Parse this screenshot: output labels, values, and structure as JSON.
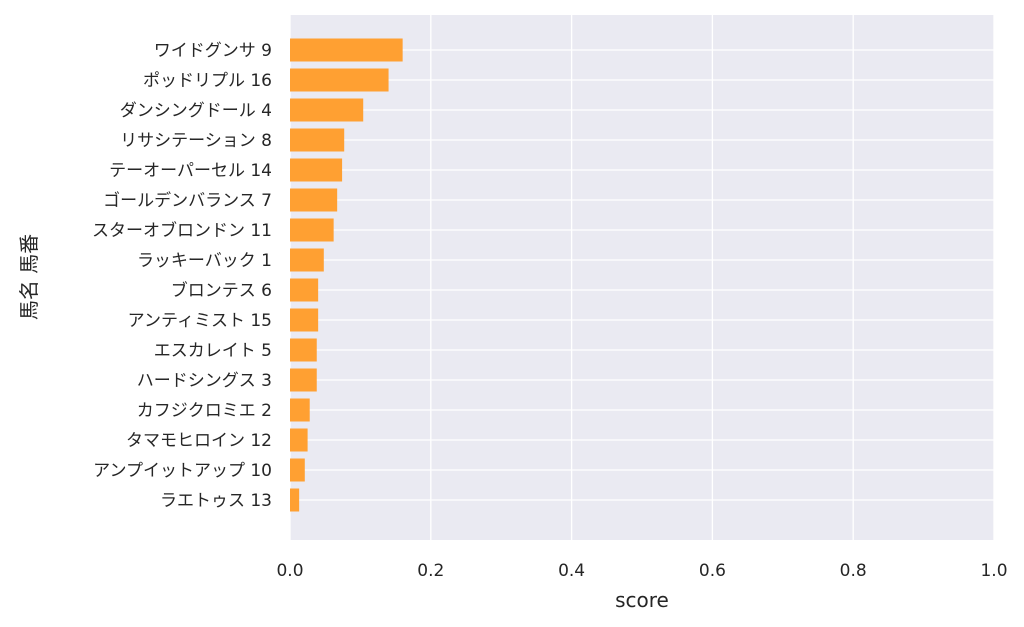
{
  "chart_data": {
    "type": "bar",
    "orientation": "horizontal",
    "title": "",
    "xlabel": "score",
    "ylabel": "馬名 馬番",
    "xlim": [
      0.0,
      1.0
    ],
    "xticks": [
      "0.0",
      "0.2",
      "0.4",
      "0.6",
      "0.8",
      "1.0"
    ],
    "grid": true,
    "bar_color": "#FFA032",
    "background_color": "#EAEAF2",
    "categories": [
      "ワイドグンサ 9",
      "ポッドリプル 16",
      "ダンシングドール 4",
      "リサシテーション 8",
      "テーオーパーセル 14",
      "ゴールデンバランス 7",
      "スターオブロンドン 11",
      "ラッキーバック 1",
      "ブロンテス 6",
      "アンティミスト 15",
      "エスカレイト 5",
      "ハードシングス 3",
      "カフジクロミエ 2",
      "タマモヒロイン 12",
      "アンプイットアップ 10",
      "ラエトゥス 13"
    ],
    "values": [
      0.16,
      0.14,
      0.104,
      0.077,
      0.074,
      0.067,
      0.062,
      0.048,
      0.04,
      0.04,
      0.038,
      0.038,
      0.028,
      0.025,
      0.021,
      0.013
    ]
  }
}
